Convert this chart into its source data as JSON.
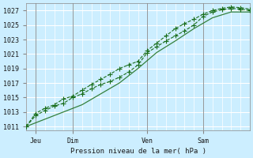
{
  "bg_color": "#cceeff",
  "grid_color": "#ffffff",
  "line_color": "#1a6e1a",
  "marker_color": "#1a6e1a",
  "axis_label": "Pression niveau de la mer( hPa )",
  "yticks": [
    1011,
    1013,
    1015,
    1017,
    1019,
    1021,
    1023,
    1025,
    1027
  ],
  "ylim": [
    1010.5,
    1028
  ],
  "xlim": [
    0,
    72
  ],
  "x_day_labels": [
    [
      "Jeu",
      3
    ],
    [
      "Dim",
      15
    ],
    [
      "Ven",
      39
    ],
    [
      "Sam",
      57
    ]
  ],
  "x_day_vlines": [
    3,
    15,
    39,
    57
  ],
  "line1_x": [
    0,
    3,
    6,
    9,
    12,
    15,
    18,
    21,
    24,
    27,
    30,
    33,
    36,
    39,
    42,
    45,
    48,
    51,
    54,
    57,
    60,
    63,
    66,
    69,
    72
  ],
  "line1_y": [
    1011,
    1012.5,
    1013.2,
    1013.8,
    1014.2,
    1015.0,
    1015.5,
    1016.2,
    1016.8,
    1017.2,
    1017.8,
    1018.5,
    1019.5,
    1021.2,
    1022.0,
    1022.8,
    1023.5,
    1024.2,
    1025.0,
    1026.2,
    1026.8,
    1027.1,
    1027.3,
    1027.2,
    1027.0
  ],
  "line2_x": [
    0,
    3,
    6,
    9,
    12,
    15,
    18,
    21,
    24,
    27,
    30,
    33,
    36,
    39,
    42,
    45,
    48,
    51,
    54,
    57,
    60,
    63,
    66,
    69,
    72
  ],
  "line2_y": [
    1011,
    1012.8,
    1013.5,
    1014.0,
    1014.8,
    1015.2,
    1016.0,
    1016.8,
    1017.5,
    1018.2,
    1019.0,
    1019.5,
    1020.0,
    1021.5,
    1022.5,
    1023.5,
    1024.5,
    1025.2,
    1025.8,
    1026.5,
    1027.0,
    1027.3,
    1027.5,
    1027.4,
    1027.2
  ],
  "line3_x": [
    0,
    6,
    12,
    18,
    24,
    30,
    36,
    42,
    48,
    54,
    60,
    66,
    72
  ],
  "line3_y": [
    1011,
    1012.0,
    1013.0,
    1014.0,
    1015.5,
    1017.0,
    1019.0,
    1021.2,
    1022.8,
    1024.5,
    1026.0,
    1026.8,
    1026.8
  ]
}
